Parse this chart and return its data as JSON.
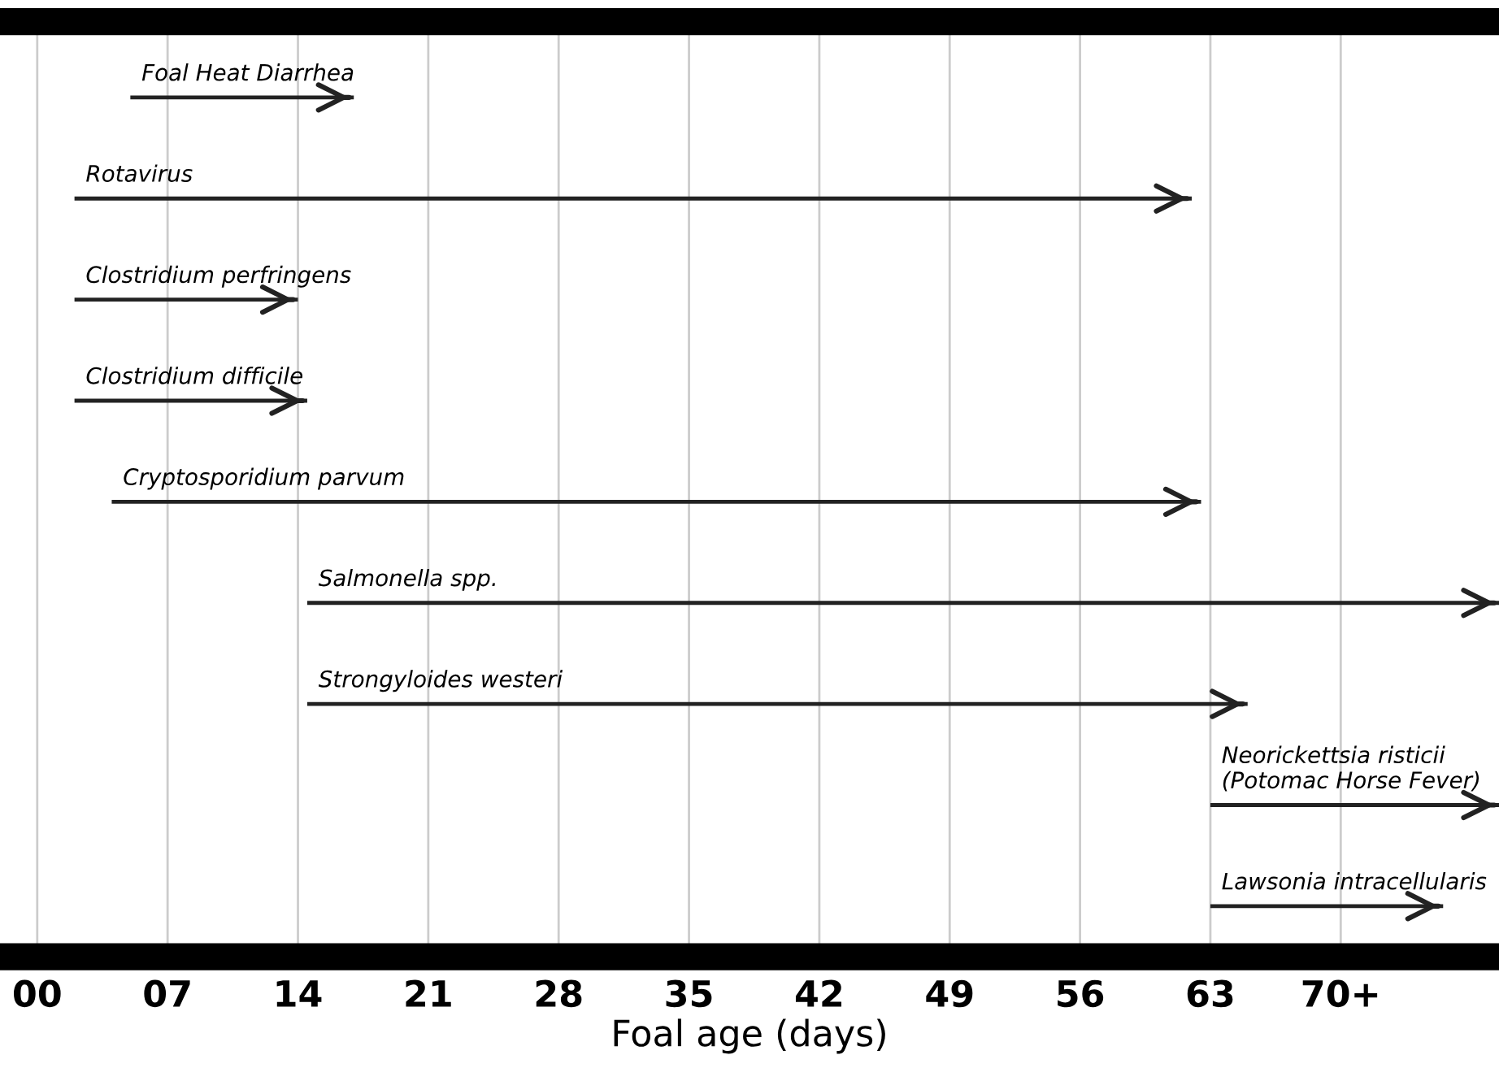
{
  "chart_data": {
    "type": "bar",
    "orientation": "horizontal",
    "xlabel": "Foal age (days)",
    "categories": [
      "Foal Heat Diarrhea",
      "Rotavirus",
      "Clostridium perfringens",
      "Clostridium difficile",
      "Cryptosporidium parvum",
      "Salmonella spp.",
      "Strongyloides westeri",
      "Neorickettsia risticii\n(Potomac Horse Fever)",
      "Lawsonia intracellularis"
    ],
    "base": [
      5,
      2,
      2,
      2,
      4,
      14.5,
      14.5,
      63,
      63
    ],
    "values": [
      12,
      60,
      12,
      12.5,
      58.5,
      64,
      50.5,
      15.5,
      12.5
    ],
    "color": "#222222",
    "xlim": [
      -2,
      78.5
    ],
    "xticks": [
      {
        "value": 0,
        "label": "00"
      },
      {
        "value": 7,
        "label": "07"
      },
      14,
      21,
      28,
      35,
      42,
      49,
      56,
      63,
      {
        "value": 70,
        "label": "70+"
      }
    ],
    "grid": "x",
    "tick_labels": "x"
  }
}
